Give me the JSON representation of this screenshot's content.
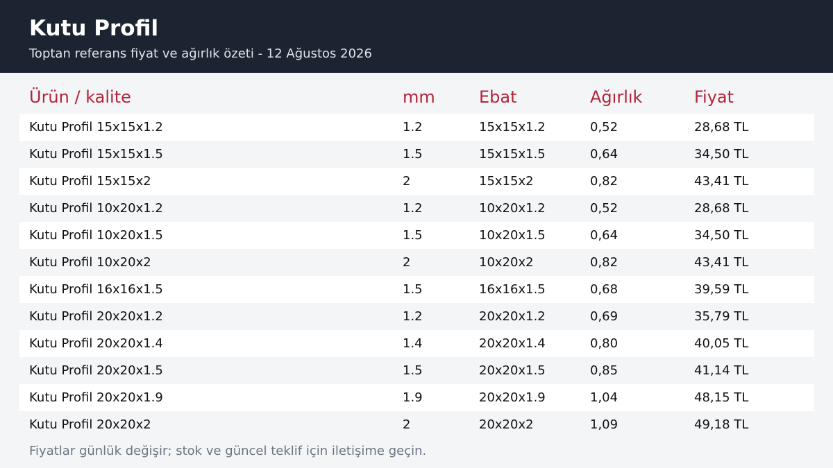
{
  "header": {
    "title": "Kutu Profil",
    "subtitle": "Toptan referans fiyat ve ağırlık özeti - 12 Ağustos 2026"
  },
  "table": {
    "columns": [
      "Ürün / kalite",
      "mm",
      "Ebat",
      "Ağırlık",
      "Fiyat"
    ],
    "rows": [
      [
        "Kutu Profil 15x15x1.2",
        "1.2",
        "15x15x1.2",
        "0,52",
        "28,68 TL"
      ],
      [
        "Kutu Profil 15x15x1.5",
        "1.5",
        "15x15x1.5",
        "0,64",
        "34,50 TL"
      ],
      [
        "Kutu Profil 15x15x2",
        "2",
        "15x15x2",
        "0,82",
        "43,41 TL"
      ],
      [
        "Kutu Profil 10x20x1.2",
        "1.2",
        "10x20x1.2",
        "0,52",
        "28,68 TL"
      ],
      [
        "Kutu Profil 10x20x1.5",
        "1.5",
        "10x20x1.5",
        "0,64",
        "34,50 TL"
      ],
      [
        "Kutu Profil 10x20x2",
        "2",
        "10x20x2",
        "0,82",
        "43,41 TL"
      ],
      [
        "Kutu Profil 16x16x1.5",
        "1.5",
        "16x16x1.5",
        "0,68",
        "39,59 TL"
      ],
      [
        "Kutu Profil 20x20x1.2",
        "1.2",
        "20x20x1.2",
        "0,69",
        "35,79 TL"
      ],
      [
        "Kutu Profil 20x20x1.4",
        "1.4",
        "20x20x1.4",
        "0,80",
        "40,05 TL"
      ],
      [
        "Kutu Profil 20x20x1.5",
        "1.5",
        "20x20x1.5",
        "0,85",
        "41,14 TL"
      ],
      [
        "Kutu Profil 20x20x1.9",
        "1.9",
        "20x20x1.9",
        "1,04",
        "48,15 TL"
      ],
      [
        "Kutu Profil 20x20x2",
        "2",
        "20x20x2",
        "1,09",
        "49,18 TL"
      ]
    ]
  },
  "footer": "Fiyatlar günlük değişir; stok ve güncel teklif için iletişime geçin."
}
